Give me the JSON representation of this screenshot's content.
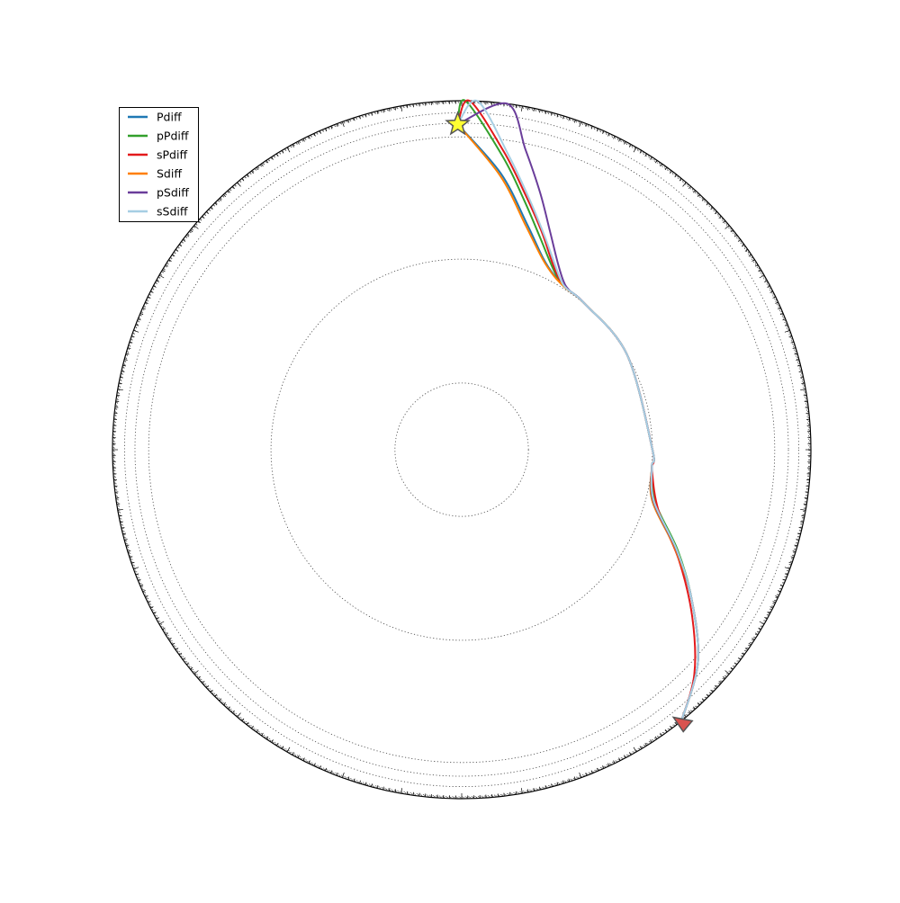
{
  "chart_data": {
    "type": "ray-path-diagram",
    "earth_radius_km": 6371,
    "discontinuity_radii_km": [
      1217.5,
      3479.5,
      5711,
      5961,
      6151,
      6336,
      6351
    ],
    "source": {
      "label_icon": "star-icon",
      "distance_deg": -0.7,
      "radius_km": 5941,
      "color": "#ffff33"
    },
    "receiver": {
      "label_icon": "triangle-icon",
      "distance_deg": 141,
      "radius_km": 6371,
      "color": "#d9534f"
    },
    "legend": {
      "placement": "upper-left",
      "entries": [
        {
          "name": "Pdiff",
          "color": "#1f78b4"
        },
        {
          "name": "pPdiff",
          "color": "#33a02c"
        },
        {
          "name": "sPdiff",
          "color": "#e31a1c"
        },
        {
          "name": "Sdiff",
          "color": "#ff7f00"
        },
        {
          "name": "pSdiff",
          "color": "#6a3d9a"
        },
        {
          "name": "sSdiff",
          "color": "#a6cee3"
        }
      ]
    },
    "rays": [
      {
        "phase": "Pdiff",
        "color": "#1f78b4",
        "points": [
          [
            -0.7,
            5941
          ],
          [
            8,
            5100
          ],
          [
            16,
            4300
          ],
          [
            23,
            3800
          ],
          [
            28,
            3600
          ],
          [
            33,
            3510
          ],
          [
            40,
            3485
          ],
          [
            60,
            3481
          ],
          [
            90,
            3480
          ],
          [
            95,
            3483
          ],
          [
            105,
            3600
          ],
          [
            115,
            4300
          ],
          [
            123,
            5000
          ],
          [
            132,
            5800
          ],
          [
            141,
            6371
          ]
        ]
      },
      {
        "phase": "pPdiff",
        "color": "#33a02c",
        "points": [
          [
            -0.7,
            5941
          ],
          [
            0.6,
            6371
          ],
          [
            8,
            5400
          ],
          [
            14,
            4700
          ],
          [
            20,
            4150
          ],
          [
            25,
            3800
          ],
          [
            29,
            3600
          ],
          [
            33,
            3510
          ],
          [
            40,
            3485
          ],
          [
            60,
            3481
          ],
          [
            90,
            3480
          ],
          [
            95,
            3484
          ],
          [
            105,
            3650
          ],
          [
            115,
            4350
          ],
          [
            123,
            5000
          ],
          [
            132,
            5800
          ],
          [
            141,
            6371
          ]
        ]
      },
      {
        "phase": "sPdiff",
        "color": "#e31a1c",
        "points": [
          [
            -0.7,
            5941
          ],
          [
            1.3,
            6371
          ],
          [
            8,
            5500
          ],
          [
            14,
            4800
          ],
          [
            20,
            4250
          ],
          [
            25,
            3850
          ],
          [
            29,
            3620
          ],
          [
            33,
            3510
          ],
          [
            40,
            3485
          ],
          [
            60,
            3481
          ],
          [
            90,
            3480
          ],
          [
            96,
            3490
          ],
          [
            107,
            3750
          ],
          [
            117,
            4450
          ],
          [
            126,
            5200
          ],
          [
            134,
            5900
          ],
          [
            141,
            6371
          ]
        ]
      },
      {
        "phase": "Sdiff",
        "color": "#ff7f00",
        "points": [
          [
            -0.7,
            5941
          ],
          [
            8,
            5050
          ],
          [
            16,
            4250
          ],
          [
            23,
            3780
          ],
          [
            28,
            3590
          ],
          [
            33,
            3505
          ],
          [
            40,
            3485
          ],
          [
            60,
            3481
          ],
          [
            90,
            3480
          ],
          [
            95,
            3483
          ],
          [
            105,
            3600
          ],
          [
            115,
            4300
          ],
          [
            123,
            5000
          ],
          [
            132,
            5800
          ],
          [
            141,
            6371
          ]
        ]
      },
      {
        "phase": "pSdiff",
        "color": "#6a3d9a",
        "points": [
          [
            -0.7,
            5941
          ],
          [
            7.5,
            6371
          ],
          [
            12,
            5600
          ],
          [
            17,
            4900
          ],
          [
            22,
            4300
          ],
          [
            27,
            3850
          ],
          [
            31,
            3600
          ],
          [
            34,
            3510
          ],
          [
            40,
            3485
          ],
          [
            60,
            3481
          ],
          [
            90,
            3480
          ],
          [
            95,
            3483
          ],
          [
            105,
            3620
          ],
          [
            115,
            4320
          ],
          [
            123,
            5000
          ],
          [
            132,
            5800
          ],
          [
            141,
            6371
          ]
        ]
      },
      {
        "phase": "sSdiff",
        "color": "#a6cee3",
        "points": [
          [
            -0.7,
            5941
          ],
          [
            2.6,
            6371
          ],
          [
            9,
            5450
          ],
          [
            15,
            4750
          ],
          [
            21,
            4200
          ],
          [
            26,
            3830
          ],
          [
            30,
            3600
          ],
          [
            33,
            3510
          ],
          [
            40,
            3485
          ],
          [
            60,
            3481
          ],
          [
            90,
            3480
          ],
          [
            95,
            3484
          ],
          [
            105,
            3630
          ],
          [
            115,
            4330
          ],
          [
            123,
            5000
          ],
          [
            132,
            5800
          ],
          [
            141,
            6371
          ]
        ]
      }
    ]
  }
}
